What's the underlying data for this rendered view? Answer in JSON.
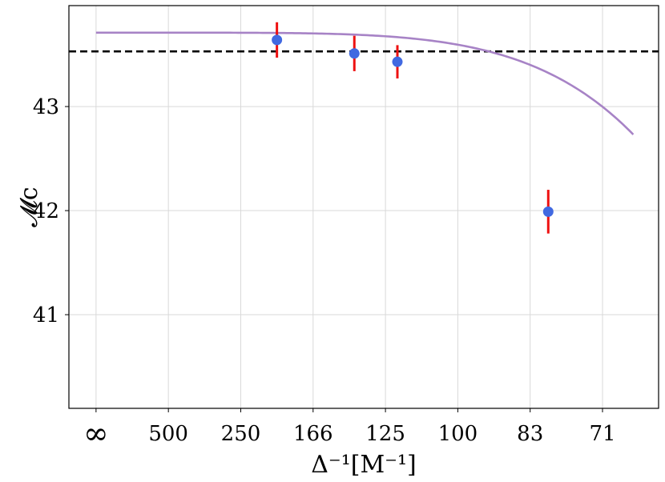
{
  "chart_data": {
    "type": "line",
    "title": "",
    "xlabel": "Δ⁻¹[M⁻¹]",
    "ylabel": "𝓜c",
    "x_scale": "linear in Δ (spacing); tick labels show Δ⁻¹",
    "x_ticks": [
      {
        "delta": 0.0,
        "label": "∞"
      },
      {
        "delta": 0.002,
        "label": "500"
      },
      {
        "delta": 0.004,
        "label": "250"
      },
      {
        "delta": 0.006,
        "label": "166"
      },
      {
        "delta": 0.008,
        "label": "125"
      },
      {
        "delta": 0.01,
        "label": "100"
      },
      {
        "delta": 0.012,
        "label": "83"
      },
      {
        "delta": 0.014,
        "label": "71"
      }
    ],
    "xlim": [
      -0.00075,
      0.01555
    ],
    "ylim": [
      40.1,
      43.97
    ],
    "y_ticks": [
      41,
      42,
      43
    ],
    "grid": true,
    "reference_line": {
      "y": 43.53,
      "style": "dashed",
      "color": "#000000"
    },
    "fit_curve": {
      "name": "",
      "color": "#a783c6",
      "form": "y = a - b * x^p",
      "params": {
        "a": 43.71,
        "b": 7300000000.0,
        "p": 5.4
      },
      "x_range": [
        0.0,
        0.01485
      ]
    },
    "series": [
      {
        "name": "",
        "color": "#4169e1",
        "error_color": "#ee1111",
        "x": [
          0.005,
          0.00714,
          0.00833,
          0.0125
        ],
        "y": [
          43.64,
          43.51,
          43.43,
          41.99
        ],
        "yerr": [
          0.17,
          0.17,
          0.16,
          0.21
        ]
      }
    ]
  }
}
